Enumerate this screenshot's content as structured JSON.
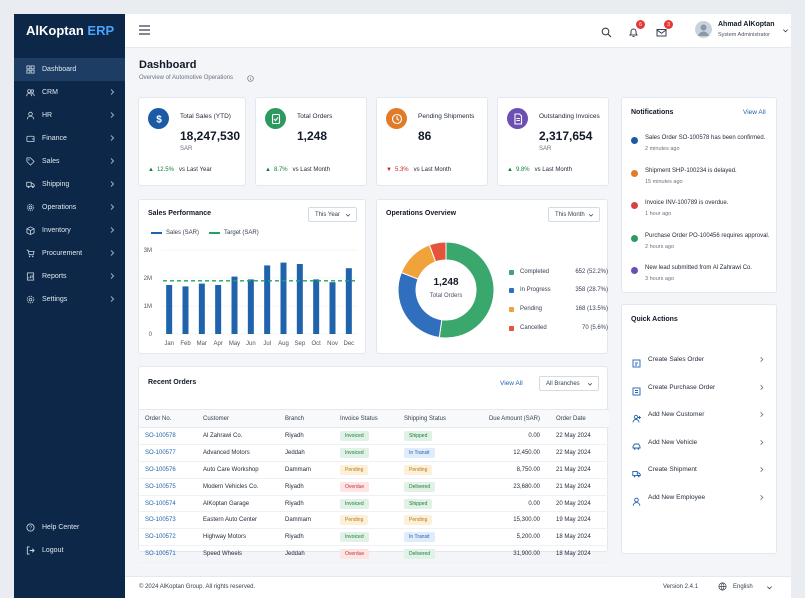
{
  "brand": {
    "name": "AlKoptan",
    "suffix": "ERP"
  },
  "sidebar": {
    "items": [
      {
        "label": "Dashboard",
        "icon": "grid-icon"
      },
      {
        "label": "CRM",
        "icon": "users-icon"
      },
      {
        "label": "HR",
        "icon": "user-icon"
      },
      {
        "label": "Finance",
        "icon": "wallet-icon"
      },
      {
        "label": "Sales",
        "icon": "tag-icon"
      },
      {
        "label": "Shipping",
        "icon": "truck-icon"
      },
      {
        "label": "Operations",
        "icon": "cog-icon"
      },
      {
        "label": "Inventory",
        "icon": "box-icon"
      },
      {
        "label": "Procurement",
        "icon": "cart-icon"
      },
      {
        "label": "Reports",
        "icon": "report-icon"
      },
      {
        "label": "Settings",
        "icon": "settings-icon"
      }
    ],
    "help": "Help Center",
    "logout": "Logout"
  },
  "topbar": {
    "notifications_count": "6",
    "messages_count": "3",
    "user_name": "Ahmad AlKoptan",
    "user_role": "System Administrator"
  },
  "page": {
    "title": "Dashboard",
    "subtitle": "Overview of Automotive Operations"
  },
  "kpis": [
    {
      "label": "Total Sales (YTD)",
      "value": "18,247,530",
      "unit": "SAR",
      "trend": "12.5%",
      "dir": "up",
      "vs": "vs Last Year",
      "color": "#1c5aa6"
    },
    {
      "label": "Total Orders",
      "value": "1,248",
      "unit": "",
      "trend": "8.7%",
      "dir": "up",
      "vs": "vs Last Month",
      "color": "#2c9a5e"
    },
    {
      "label": "Pending Shipments",
      "value": "86",
      "unit": "",
      "trend": "5.3%",
      "dir": "down",
      "vs": "vs Last Month",
      "color": "#e07b2a"
    },
    {
      "label": "Outstanding Invoices",
      "value": "2,317,654",
      "unit": "SAR",
      "trend": "9.8%",
      "dir": "up",
      "vs": "vs Last Month",
      "color": "#6b4fb3"
    }
  ],
  "sales_performance": {
    "title": "Sales Performance",
    "period": "This Year",
    "legend_sales": "Sales (SAR)",
    "legend_target": "Target (SAR)"
  },
  "operations_overview": {
    "title": "Operations Overview",
    "period": "This Month",
    "center_value": "1,248",
    "center_label": "Total Orders",
    "items": [
      {
        "label": "Completed",
        "value": "652 (52.2%)",
        "color": "#3aa76d"
      },
      {
        "label": "In Progress",
        "value": "358 (28.7%)",
        "color": "#2f6fbd"
      },
      {
        "label": "Pending",
        "value": "168 (13.5%)",
        "color": "#f0a33a"
      },
      {
        "label": "Cancelled",
        "value": "70 (5.6%)",
        "color": "#e5533d"
      }
    ]
  },
  "chart_data": [
    {
      "type": "bar",
      "title": "Sales Performance",
      "categories": [
        "Jan",
        "Feb",
        "Mar",
        "Apr",
        "May",
        "Jun",
        "Jul",
        "Aug",
        "Sep",
        "Oct",
        "Nov",
        "Dec"
      ],
      "series": [
        {
          "name": "Sales (SAR)",
          "values": [
            1.75,
            1.7,
            1.8,
            1.75,
            2.05,
            1.95,
            2.45,
            2.55,
            2.5,
            1.95,
            1.85,
            2.35
          ]
        },
        {
          "name": "Target (SAR)",
          "values": [
            1.9,
            1.9,
            1.9,
            1.9,
            1.9,
            1.9,
            1.9,
            1.9,
            1.9,
            1.9,
            1.9,
            1.9
          ]
        }
      ],
      "yticks": [
        "0",
        "1M",
        "2M",
        "3M"
      ],
      "ylim": [
        0,
        3
      ]
    },
    {
      "type": "pie",
      "title": "Operations Overview",
      "categories": [
        "Completed",
        "In Progress",
        "Pending",
        "Cancelled"
      ],
      "values": [
        652,
        358,
        168,
        70
      ]
    }
  ],
  "notifications": {
    "title": "Notifications",
    "view_all": "View All",
    "items": [
      {
        "text": "Sales Order SO-100578 has been confirmed.",
        "time": "2 minutes ago",
        "color": "#1c5aa6"
      },
      {
        "text": "Shipment SHP-100234 is delayed.",
        "time": "15 minutes ago",
        "color": "#e07b2a"
      },
      {
        "text": "Invoice INV-100789 is overdue.",
        "time": "1 hour ago",
        "color": "#d94242"
      },
      {
        "text": "Purchase Order PO-100456 requires approval.",
        "time": "2 hours ago",
        "color": "#2c9a5e"
      },
      {
        "text": "New lead submitted from Al Zahrawi Co.",
        "time": "3 hours ago",
        "color": "#6b4fb3"
      }
    ]
  },
  "quick_actions": {
    "title": "Quick Actions",
    "items": [
      {
        "label": "Create Sales Order",
        "icon": "sales-order-icon"
      },
      {
        "label": "Create Purchase Order",
        "icon": "purchase-order-icon"
      },
      {
        "label": "Add New Customer",
        "icon": "add-user-icon"
      },
      {
        "label": "Add New Vehicle",
        "icon": "car-icon"
      },
      {
        "label": "Create Shipment",
        "icon": "shipment-icon"
      },
      {
        "label": "Add New Employee",
        "icon": "employee-icon"
      }
    ]
  },
  "recent_orders": {
    "title": "Recent Orders",
    "view_all": "View All",
    "branch_filter": "All Branches",
    "columns": [
      "Order No.",
      "Customer",
      "Branch",
      "Invoice Status",
      "Shipping Status",
      "Due Amount (SAR)",
      "Order Date"
    ],
    "rows": [
      [
        "SO-100578",
        "Al Zahrawi Co.",
        "Riyadh",
        "Invoiced",
        "Shipped",
        "0.00",
        "22 May 2024"
      ],
      [
        "SO-100577",
        "Advanced Motors",
        "Jeddah",
        "Invoiced",
        "In Transit",
        "12,450.00",
        "22 May 2024"
      ],
      [
        "SO-100576",
        "Auto Care Workshop",
        "Dammam",
        "Pending",
        "Pending",
        "8,750.00",
        "21 May 2024"
      ],
      [
        "SO-100575",
        "Modern Vehicles Co.",
        "Riyadh",
        "Overdue",
        "Delivered",
        "23,680.00",
        "21 May 2024"
      ],
      [
        "SO-100574",
        "AlKoptan Garage",
        "Riyadh",
        "Invoiced",
        "Shipped",
        "0.00",
        "20 May 2024"
      ],
      [
        "SO-100573",
        "Eastern Auto Center",
        "Dammam",
        "Pending",
        "Pending",
        "15,300.00",
        "19 May 2024"
      ],
      [
        "SO-100572",
        "Highway Motors",
        "Riyadh",
        "Invoiced",
        "In Transit",
        "5,200.00",
        "18 May 2024"
      ],
      [
        "SO-100571",
        "Speed Wheels",
        "Jeddah",
        "Overdue",
        "Delivered",
        "31,900.00",
        "18 May 2024"
      ]
    ]
  },
  "footer": {
    "copyright": "© 2024 AlKoptan Group. All rights reserved.",
    "version": "Version 2.4.1",
    "language": "English"
  }
}
